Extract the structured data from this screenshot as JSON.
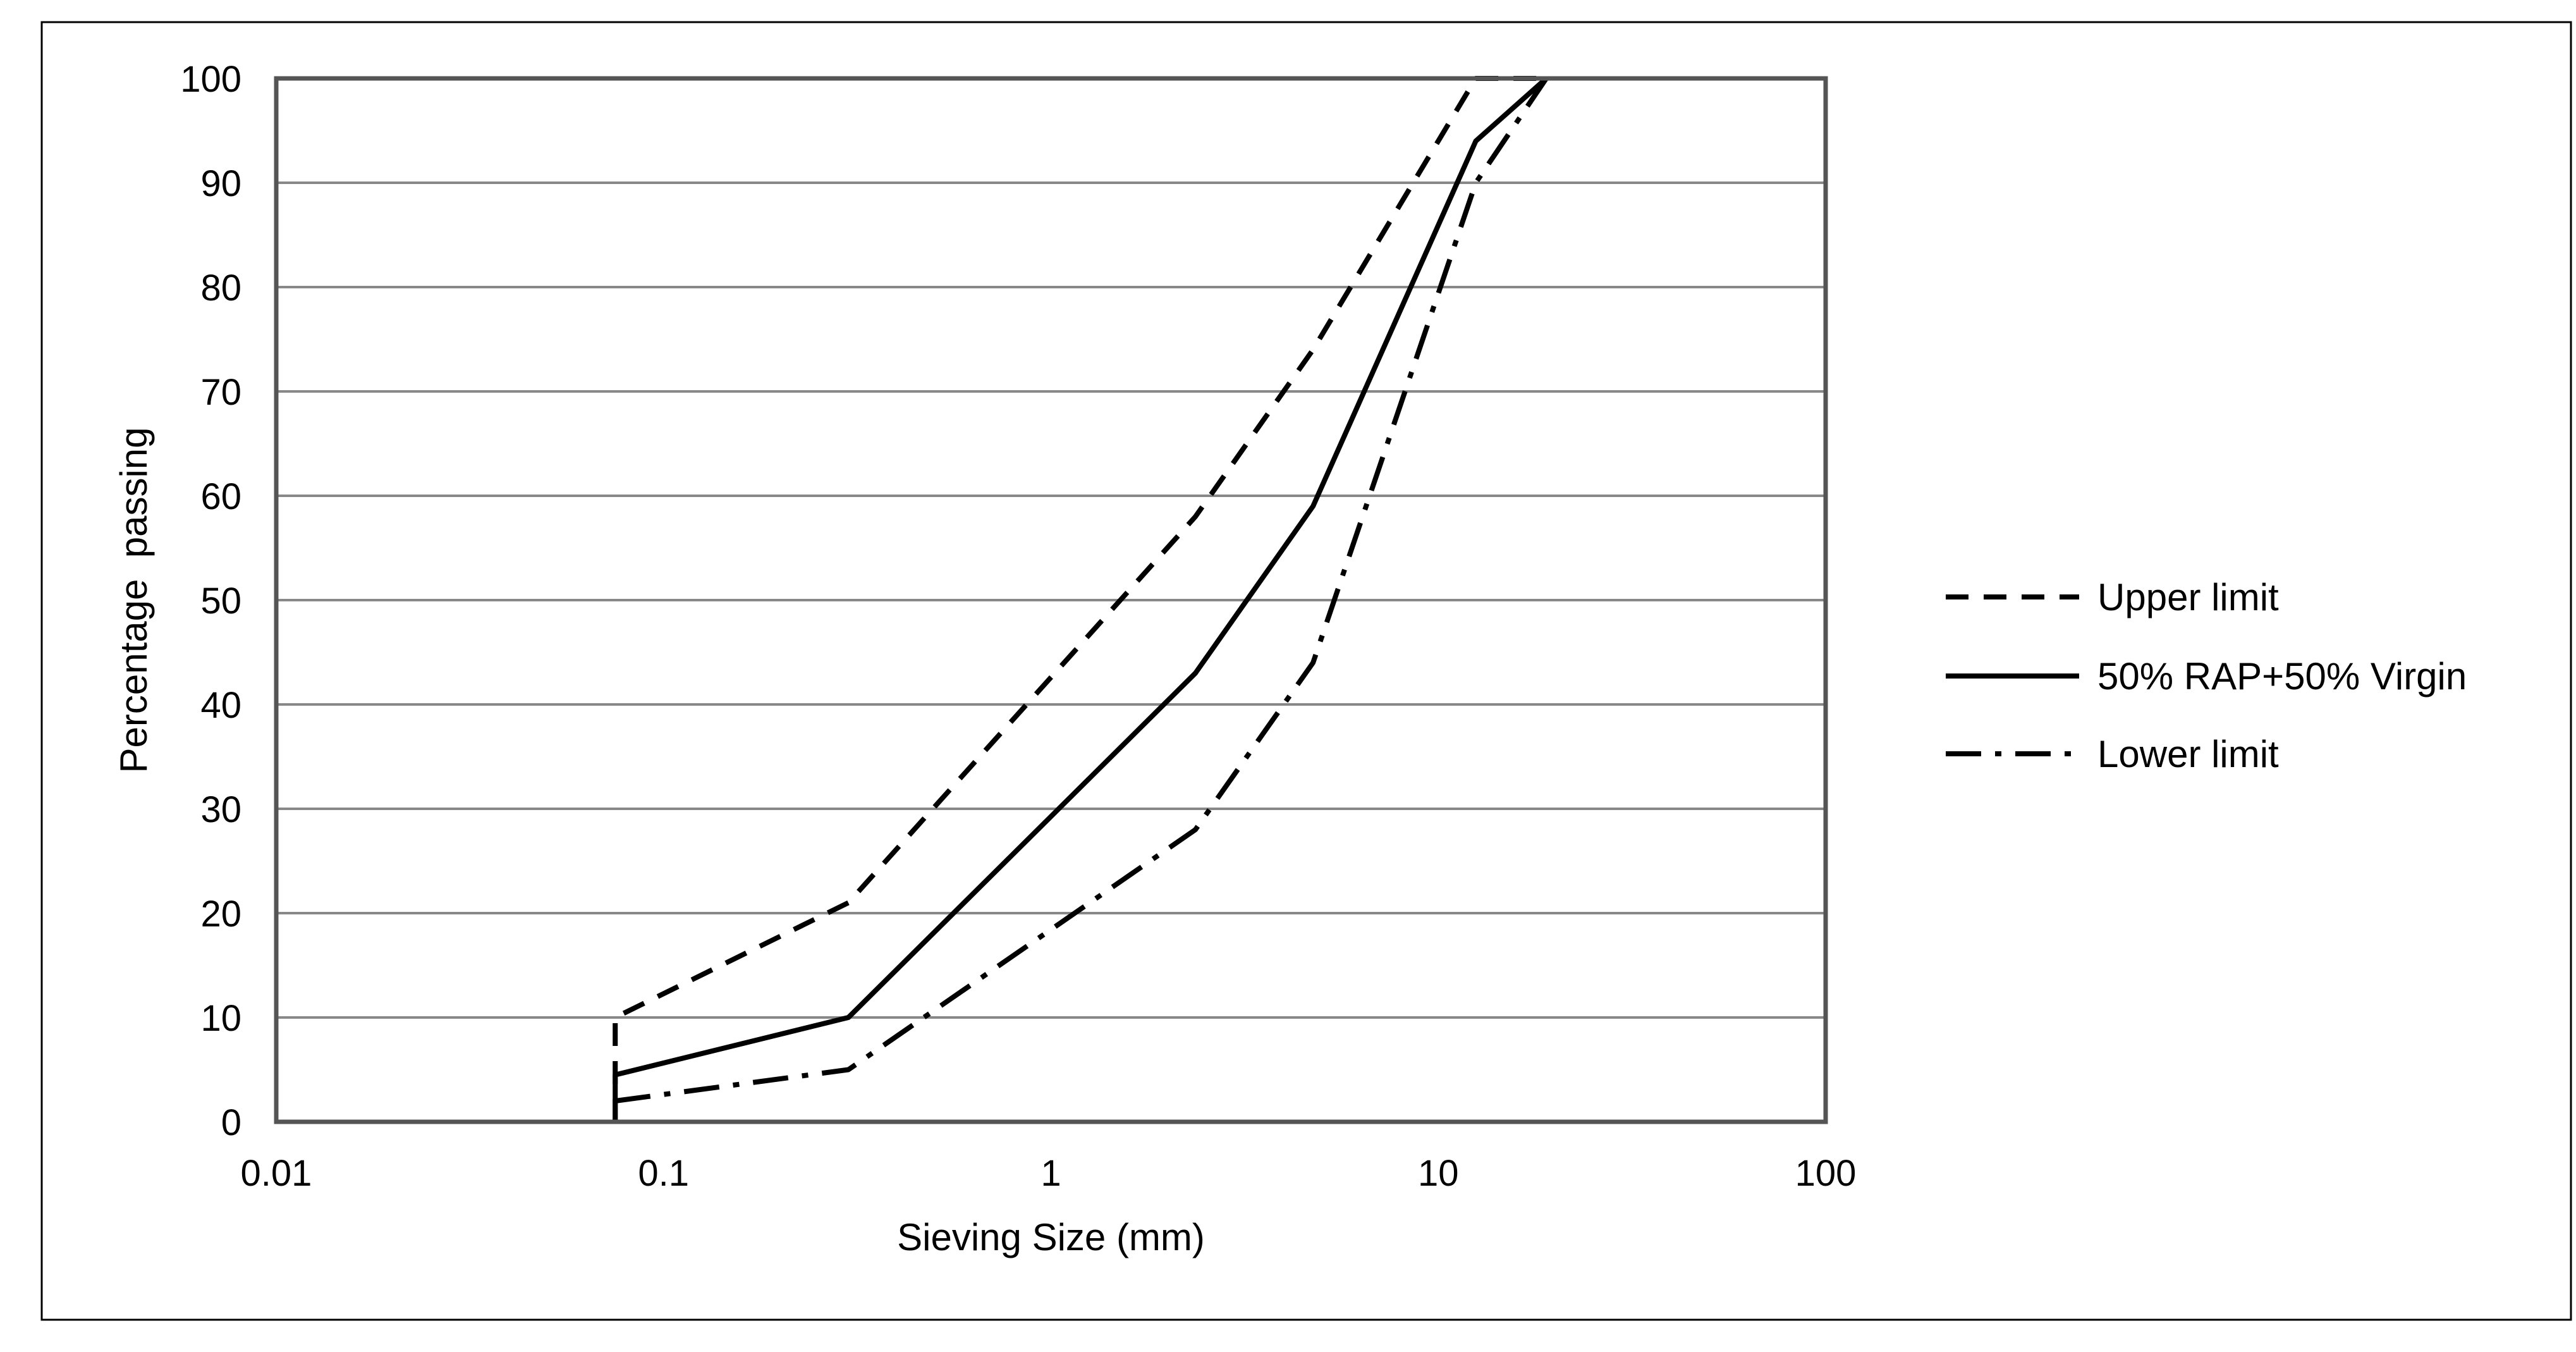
{
  "chart_data": {
    "type": "line",
    "title": "",
    "xlabel": "Sieving Size (mm)",
    "ylabel": "Percentage  passing",
    "xscale": "log",
    "xlim": [
      0.01,
      100
    ],
    "ylim": [
      0,
      100
    ],
    "x_ticks": [
      0.01,
      0.1,
      1,
      10,
      100
    ],
    "x_tick_labels": [
      "0.01",
      "0.1",
      "1",
      "10",
      "100"
    ],
    "y_ticks": [
      0,
      10,
      20,
      30,
      40,
      50,
      60,
      70,
      80,
      90,
      100
    ],
    "y_tick_labels": [
      "0",
      "10",
      "20",
      "30",
      "40",
      "50",
      "60",
      "70",
      "80",
      "90",
      "100"
    ],
    "grid": "horizontal",
    "legend_position": "right",
    "series": [
      {
        "name": "Upper limit",
        "style": "dashed",
        "color": "#000000",
        "points": [
          [
            0.075,
            0
          ],
          [
            0.075,
            10
          ],
          [
            0.3,
            21
          ],
          [
            2.36,
            58
          ],
          [
            4.75,
            74
          ],
          [
            12.5,
            100
          ],
          [
            19,
            100
          ]
        ]
      },
      {
        "name": "50% RAP+50% Virgin",
        "style": "solid",
        "color": "#000000",
        "points": [
          [
            0.075,
            0
          ],
          [
            0.075,
            4.5
          ],
          [
            0.3,
            10
          ],
          [
            2.36,
            43
          ],
          [
            4.75,
            59
          ],
          [
            12.5,
            94
          ],
          [
            19,
            100
          ]
        ]
      },
      {
        "name": "Lower limit",
        "style": "dash-dot",
        "color": "#000000",
        "points": [
          [
            0.075,
            2
          ],
          [
            0.3,
            5
          ],
          [
            2.36,
            28
          ],
          [
            4.75,
            44
          ],
          [
            12.5,
            90
          ],
          [
            19,
            100
          ]
        ]
      }
    ]
  }
}
